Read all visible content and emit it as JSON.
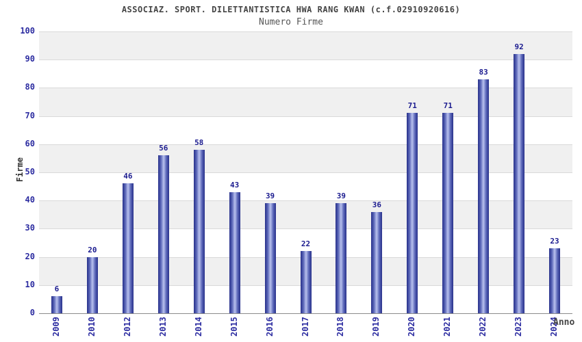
{
  "header": {
    "title": "ASSOCIAZ. SPORT. DILETTANTISTICA HWA RANG KWAN (c.f.02910920616)",
    "subtitle": "Numero Firme"
  },
  "chart_data": {
    "type": "bar",
    "title": "ASSOCIAZ. SPORT. DILETTANTISTICA HWA RANG KWAN (c.f.02910920616)",
    "subtitle": "Numero Firme",
    "categories": [
      "2009",
      "2010",
      "2012",
      "2013",
      "2014",
      "2015",
      "2016",
      "2017",
      "2018",
      "2019",
      "2020",
      "2021",
      "2022",
      "2023",
      "2024"
    ],
    "values": [
      6,
      20,
      46,
      56,
      58,
      43,
      39,
      22,
      39,
      36,
      71,
      71,
      83,
      92,
      23
    ],
    "xlabel": "Anno",
    "ylabel": "Firme",
    "ylim": [
      0,
      100
    ],
    "ytick_step": 10,
    "grid": true,
    "legend": "none",
    "colors": {
      "bar_edge": "#27308a",
      "bar_mid": "#5a66b8",
      "bar_center": "#b9c1ee",
      "value_label": "#1b1b8f",
      "tick_label": "#2b2ba0",
      "band_gray": "#f0f0f0",
      "band_white": "#ffffff",
      "gridline": "#d9d9d9"
    }
  }
}
